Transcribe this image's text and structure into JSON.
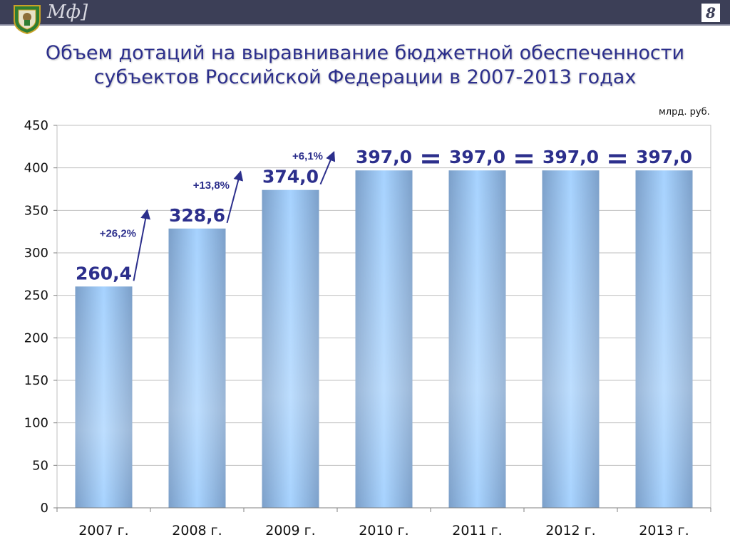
{
  "header": {
    "logo_text": "Мф]",
    "slide_number": "8"
  },
  "title": "Объем дотаций на выравнивание бюджетной обеспеченности субъектов Российской Федерации в 2007-2013 годах",
  "chart_data": {
    "type": "bar",
    "title": "Объем дотаций на выравнивание бюджетной обеспеченности субъектов Российской Федерации в 2007-2013 годах",
    "unit_label": "млрд. руб.",
    "categories": [
      "2007 г.",
      "2008 г.",
      "2009 г.",
      "2010 г.",
      "2011 г.",
      "2012 г.",
      "2013 г."
    ],
    "values": [
      260.4,
      328.6,
      374.0,
      397.0,
      397.0,
      397.0,
      397.0
    ],
    "data_labels": [
      "260,4",
      "328,6",
      "374,0",
      "397,0",
      "397,0",
      "397,0",
      "397,0"
    ],
    "ylim": [
      0,
      450
    ],
    "yticks": [
      0,
      50,
      100,
      150,
      200,
      250,
      300,
      350,
      400,
      450
    ],
    "grid": true,
    "growth_annotations": [
      {
        "from": 0,
        "to": 1,
        "label": "+26,2%"
      },
      {
        "from": 1,
        "to": 2,
        "label": "+13,8%"
      },
      {
        "from": 2,
        "to": 3,
        "label": "+6,1%"
      }
    ],
    "equality_annotations": [
      {
        "between": [
          3,
          4
        ],
        "label": "="
      },
      {
        "between": [
          4,
          5
        ],
        "label": "="
      },
      {
        "between": [
          5,
          6
        ],
        "label": "="
      }
    ],
    "colors": {
      "bar_edge": "#7b9fc9",
      "bar_center": "#9fd0ff",
      "label": "#2c2f8c",
      "arrow": "#2c2f8c",
      "grid": "#bfbfbf"
    }
  }
}
